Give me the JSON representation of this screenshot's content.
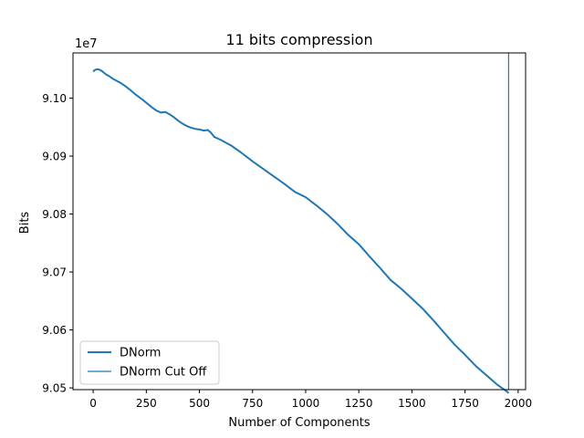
{
  "chart_data": {
    "type": "line",
    "title": "11 bits compression",
    "xlabel": "Number of Components",
    "ylabel": "Bits",
    "y_offset_label": "1e7",
    "xlim": [
      -95,
      2035
    ],
    "ylim": [
      9.0497,
      9.1078
    ],
    "x_ticks": [
      0,
      250,
      500,
      750,
      1000,
      1250,
      1500,
      1750,
      2000
    ],
    "x_tick_labels": [
      "0",
      "250",
      "500",
      "750",
      "1000",
      "1250",
      "1500",
      "1750",
      "2000"
    ],
    "y_ticks": [
      9.05,
      9.06,
      9.07,
      9.08,
      9.09,
      9.1
    ],
    "y_tick_labels": [
      "9.05",
      "9.06",
      "9.07",
      "9.08",
      "9.09",
      "9.10"
    ],
    "grid": false,
    "legend_position": "lower-left",
    "series": [
      {
        "name": "DNorm",
        "color": "#1f77b4",
        "x": [
          0,
          10,
          20,
          30,
          40,
          50,
          60,
          75,
          90,
          110,
          130,
          150,
          175,
          200,
          230,
          260,
          280,
          300,
          320,
          340,
          360,
          380,
          400,
          420,
          440,
          460,
          480,
          500,
          520,
          540,
          555,
          570,
          600,
          650,
          700,
          750,
          800,
          850,
          900,
          950,
          1000,
          1050,
          1100,
          1150,
          1200,
          1250,
          1300,
          1350,
          1400,
          1450,
          1500,
          1550,
          1600,
          1650,
          1700,
          1750,
          1800,
          1850,
          1900,
          1950,
          1955
        ],
        "y": [
          9.1046,
          9.1049,
          9.105,
          9.1049,
          9.1047,
          9.1044,
          9.1041,
          9.1038,
          9.1034,
          9.103,
          9.1026,
          9.1021,
          9.1014,
          9.1006,
          9.0998,
          9.0989,
          9.0983,
          9.0978,
          9.0975,
          9.0976,
          9.0972,
          9.0967,
          9.0961,
          9.0956,
          9.0952,
          9.0949,
          9.0947,
          9.0946,
          9.0944,
          9.0945,
          9.094,
          9.0933,
          9.0928,
          9.0918,
          9.0905,
          9.0891,
          9.0878,
          9.0865,
          9.0852,
          9.0838,
          9.0829,
          9.0815,
          9.08,
          9.0783,
          9.0764,
          9.0748,
          9.0727,
          9.0707,
          9.0686,
          9.0671,
          9.0654,
          9.0637,
          9.0617,
          9.0596,
          9.0575,
          9.0557,
          9.0538,
          9.0522,
          9.0506,
          9.0493,
          9.0491
        ]
      },
      {
        "name": "DNorm Cut Off",
        "color": "#1f77b4",
        "vertical_line_x": 1955
      }
    ]
  }
}
